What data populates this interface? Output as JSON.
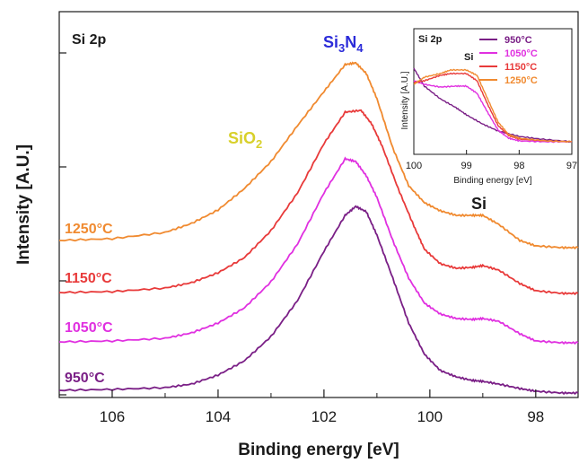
{
  "chart_data": [
    {
      "type": "line",
      "panel_label": "Si 2p",
      "xlabel": "Binding energy [eV]",
      "ylabel": "Intensity [A.U.]",
      "xlim": [
        107.0,
        97.2
      ],
      "x_reversed": true,
      "x_ticks": [
        "106",
        "104",
        "102",
        "100",
        "98"
      ],
      "y_tick_labels": false,
      "annotations": [
        {
          "text": "Si",
          "sub": "3",
          "text2": "N",
          "sub2": "4",
          "x": 101.6,
          "color": "#2b2bd9"
        },
        {
          "text": "SiO",
          "sub": "2",
          "text2": "",
          "sub2": "",
          "x": 103.3,
          "color": "#d8d02a"
        },
        {
          "text": "Si",
          "sub": "",
          "text2": "",
          "sub2": "",
          "x": 99.0,
          "color": "#1a1a1a"
        }
      ],
      "series": [
        {
          "label": "950°C",
          "color": "#7a1f86",
          "points": [
            [
              107,
              435
            ],
            [
              106,
              434
            ],
            [
              105,
              432
            ],
            [
              104.5,
              428
            ],
            [
              104,
              418
            ],
            [
              103.5,
              402
            ],
            [
              103,
              375
            ],
            [
              102.5,
              335
            ],
            [
              102,
              280
            ],
            [
              101.6,
              240
            ],
            [
              101.4,
              230
            ],
            [
              101.2,
              236
            ],
            [
              101,
              262
            ],
            [
              100.7,
              310
            ],
            [
              100.4,
              360
            ],
            [
              100.1,
              395
            ],
            [
              99.8,
              413
            ],
            [
              99.5,
              420
            ],
            [
              99.2,
              424
            ],
            [
              99,
              425
            ],
            [
              98.7,
              428
            ],
            [
              98.3,
              433
            ],
            [
              98,
              436
            ],
            [
              97.5,
              438
            ],
            [
              97.2,
              438
            ]
          ]
        },
        {
          "label": "1050°C",
          "color": "#e030e0",
          "points": [
            [
              107,
              381
            ],
            [
              106,
              380
            ],
            [
              105,
              377
            ],
            [
              104.5,
              371
            ],
            [
              104,
              360
            ],
            [
              103.5,
              343
            ],
            [
              103,
              314
            ],
            [
              102.5,
              272
            ],
            [
              102,
              215
            ],
            [
              101.6,
              177
            ],
            [
              101.4,
              180
            ],
            [
              101.2,
              196
            ],
            [
              101,
              220
            ],
            [
              100.7,
              268
            ],
            [
              100.4,
              310
            ],
            [
              100.1,
              338
            ],
            [
              99.8,
              350
            ],
            [
              99.5,
              355
            ],
            [
              99.2,
              356
            ],
            [
              99,
              355
            ],
            [
              98.7,
              358
            ],
            [
              98.3,
              372
            ],
            [
              98,
              380
            ],
            [
              97.5,
              382
            ],
            [
              97.2,
              382
            ]
          ]
        },
        {
          "label": "1150°C",
          "color": "#e83a3a",
          "points": [
            [
              107,
              326
            ],
            [
              106,
              325
            ],
            [
              105,
              321
            ],
            [
              104.5,
              315
            ],
            [
              104,
              304
            ],
            [
              103.5,
              287
            ],
            [
              103,
              257
            ],
            [
              102.5,
              215
            ],
            [
              102,
              160
            ],
            [
              101.6,
              125
            ],
            [
              101.3,
              123
            ],
            [
              101.1,
              138
            ],
            [
              100.9,
              163
            ],
            [
              100.6,
              210
            ],
            [
              100.3,
              252
            ],
            [
              100.1,
              278
            ],
            [
              99.8,
              294
            ],
            [
              99.5,
              299
            ],
            [
              99.2,
              298
            ],
            [
              99,
              296
            ],
            [
              98.7,
              301
            ],
            [
              98.3,
              316
            ],
            [
              98,
              324
            ],
            [
              97.5,
              327
            ],
            [
              97.2,
              327
            ]
          ]
        },
        {
          "label": "1250°C",
          "color": "#f08a30",
          "points": [
            [
              107,
              268
            ],
            [
              106,
              266
            ],
            [
              105,
              259
            ],
            [
              104.5,
              249
            ],
            [
              104,
              234
            ],
            [
              103.5,
              210
            ],
            [
              103,
              180
            ],
            [
              102.5,
              140
            ],
            [
              102,
              102
            ],
            [
              101.6,
              72
            ],
            [
              101.4,
              70
            ],
            [
              101.2,
              82
            ],
            [
              101,
              110
            ],
            [
              100.7,
              165
            ],
            [
              100.4,
              207
            ],
            [
              100.1,
              226
            ],
            [
              99.8,
              235
            ],
            [
              99.5,
              240
            ],
            [
              99.2,
              240
            ],
            [
              99,
              240
            ],
            [
              98.7,
              250
            ],
            [
              98.3,
              268
            ],
            [
              98,
              274
            ],
            [
              97.5,
              276
            ],
            [
              97.2,
              276
            ]
          ]
        }
      ]
    },
    {
      "type": "line",
      "panel_label": "Si 2p",
      "xlabel": "Binding energy [eV]",
      "ylabel": "Intensity [A.U.]",
      "xlim": [
        100,
        97
      ],
      "x_reversed": true,
      "x_ticks": [
        "100",
        "99",
        "98",
        "97"
      ],
      "annotations": [
        {
          "text": "Si",
          "x": 98.95
        }
      ],
      "series": [
        {
          "label": "950°C",
          "color": "#7a1f86",
          "points": [
            [
              100,
              76
            ],
            [
              99.8,
              96
            ],
            [
              99.5,
              110
            ],
            [
              99.2,
              120
            ],
            [
              99,
              128
            ],
            [
              98.7,
              138
            ],
            [
              98.4,
              146
            ],
            [
              98,
              152
            ],
            [
              97.6,
              155
            ],
            [
              97,
              158
            ]
          ]
        },
        {
          "label": "1050°C",
          "color": "#e030e0",
          "points": [
            [
              100,
              90
            ],
            [
              99.8,
              94
            ],
            [
              99.5,
              97
            ],
            [
              99.2,
              96
            ],
            [
              99,
              96
            ],
            [
              98.8,
              104
            ],
            [
              98.6,
              125
            ],
            [
              98.4,
              145
            ],
            [
              98.2,
              154
            ],
            [
              98,
              157
            ],
            [
              97.5,
              158
            ],
            [
              97,
              158
            ]
          ]
        },
        {
          "label": "1150°C",
          "color": "#e83a3a",
          "points": [
            [
              100,
              92
            ],
            [
              99.8,
              90
            ],
            [
              99.5,
              84
            ],
            [
              99.3,
              82
            ],
            [
              99,
              82
            ],
            [
              98.8,
              90
            ],
            [
              98.6,
              116
            ],
            [
              98.4,
              140
            ],
            [
              98.2,
              151
            ],
            [
              98,
              155
            ],
            [
              97.5,
              157
            ],
            [
              97,
              158
            ]
          ]
        },
        {
          "label": "1250°C",
          "color": "#f08a30",
          "points": [
            [
              100,
              94
            ],
            [
              99.8,
              86
            ],
            [
              99.5,
              82
            ],
            [
              99.3,
              78
            ],
            [
              99,
              78
            ],
            [
              98.8,
              84
            ],
            [
              98.6,
              110
            ],
            [
              98.4,
              136
            ],
            [
              98.2,
              150
            ],
            [
              98,
              154
            ],
            [
              97.5,
              157
            ],
            [
              97,
              158
            ]
          ]
        }
      ]
    }
  ]
}
